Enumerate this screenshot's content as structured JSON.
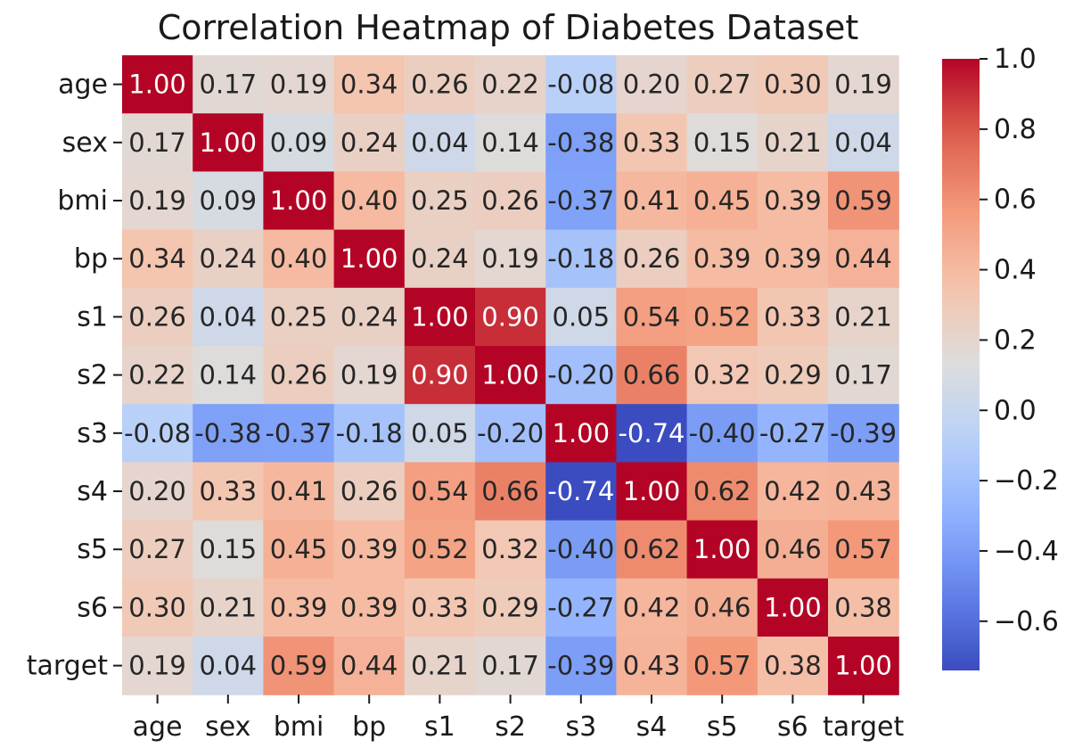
{
  "chart_data": {
    "type": "heatmap",
    "title": "Correlation Heatmap of Diabetes Dataset",
    "colormap": "coolwarm",
    "annotation_format": "2 decimals",
    "rows": [
      "age",
      "sex",
      "bmi",
      "bp",
      "s1",
      "s2",
      "s3",
      "s4",
      "s5",
      "s6",
      "target"
    ],
    "columns": [
      "age",
      "sex",
      "bmi",
      "bp",
      "s1",
      "s2",
      "s3",
      "s4",
      "s5",
      "s6",
      "target"
    ],
    "values": [
      [
        1.0,
        0.17,
        0.19,
        0.34,
        0.26,
        0.22,
        -0.08,
        0.2,
        0.27,
        0.3,
        0.19
      ],
      [
        0.17,
        1.0,
        0.09,
        0.24,
        0.04,
        0.14,
        -0.38,
        0.33,
        0.15,
        0.21,
        0.04
      ],
      [
        0.19,
        0.09,
        1.0,
        0.4,
        0.25,
        0.26,
        -0.37,
        0.41,
        0.45,
        0.39,
        0.59
      ],
      [
        0.34,
        0.24,
        0.4,
        1.0,
        0.24,
        0.19,
        -0.18,
        0.26,
        0.39,
        0.39,
        0.44
      ],
      [
        0.26,
        0.04,
        0.25,
        0.24,
        1.0,
        0.9,
        0.05,
        0.54,
        0.52,
        0.33,
        0.21
      ],
      [
        0.22,
        0.14,
        0.26,
        0.19,
        0.9,
        1.0,
        -0.2,
        0.66,
        0.32,
        0.29,
        0.17
      ],
      [
        -0.08,
        -0.38,
        -0.37,
        -0.18,
        0.05,
        -0.2,
        1.0,
        -0.74,
        -0.4,
        -0.27,
        -0.39
      ],
      [
        0.2,
        0.33,
        0.41,
        0.26,
        0.54,
        0.66,
        -0.74,
        1.0,
        0.62,
        0.42,
        0.43
      ],
      [
        0.27,
        0.15,
        0.45,
        0.39,
        0.52,
        0.32,
        -0.4,
        0.62,
        1.0,
        0.46,
        0.57
      ],
      [
        0.3,
        0.21,
        0.39,
        0.39,
        0.33,
        0.29,
        -0.27,
        0.42,
        0.46,
        1.0,
        0.38
      ],
      [
        0.19,
        0.04,
        0.59,
        0.44,
        0.21,
        0.17,
        -0.39,
        0.43,
        0.57,
        0.38,
        1.0
      ]
    ],
    "colorbar": {
      "range": [
        -0.74,
        1.0
      ],
      "ticks": [
        1.0,
        0.8,
        0.6,
        0.4,
        0.2,
        0.0,
        -0.2,
        -0.4,
        -0.6
      ],
      "tick_labels": [
        "1.0",
        "0.8",
        "0.6",
        "0.4",
        "0.2",
        "0.0",
        "−0.2",
        "−0.4",
        "−0.6"
      ]
    }
  }
}
